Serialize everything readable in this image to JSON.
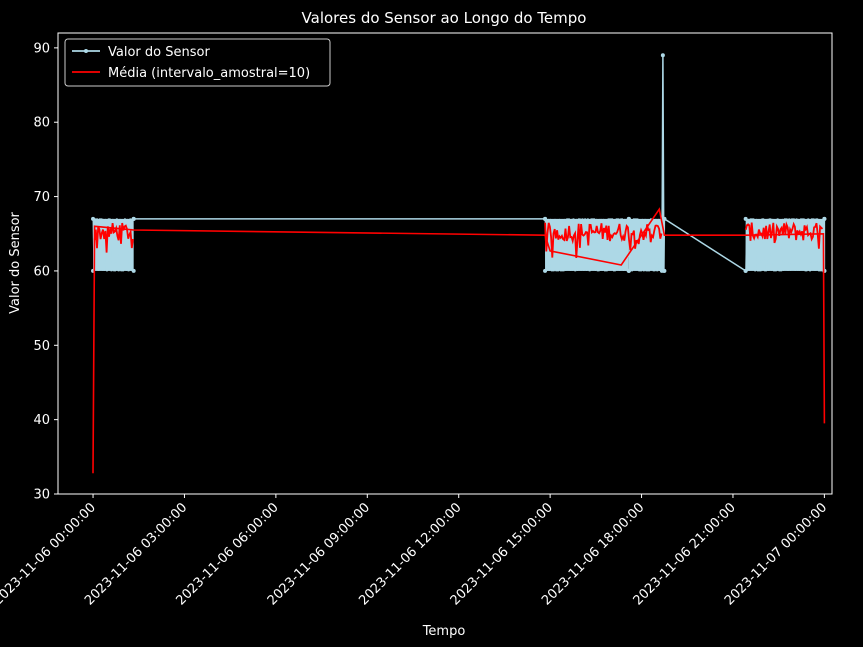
{
  "chart_data": {
    "type": "line",
    "title": "Valores do Sensor ao Longo do Tempo",
    "xlabel": "Tempo",
    "ylabel": "Valor do Sensor",
    "background": "#000000",
    "grid": false,
    "legend_position": "top-left",
    "x_ticks": [
      "2023-11-06 00:00:00",
      "2023-11-06 03:00:00",
      "2023-11-06 06:00:00",
      "2023-11-06 09:00:00",
      "2023-11-06 12:00:00",
      "2023-11-06 15:00:00",
      "2023-11-06 18:00:00",
      "2023-11-06 21:00:00",
      "2023-11-07 00:00:00"
    ],
    "y_ticks": [
      30,
      40,
      50,
      60,
      70,
      80,
      90
    ],
    "xlim": [
      "2023-11-05 22:51:00",
      "2023-11-07 00:15:00"
    ],
    "ylim": [
      30,
      92
    ],
    "series": [
      {
        "name": "Valor do Sensor",
        "color": "#add8e6",
        "marker": "circle",
        "band_low": 60,
        "band_high": 67,
        "segments": [
          [
            "2023-11-06 00:00:00",
            "2023-11-06 01:20:00"
          ],
          [
            "2023-11-06 14:50:00",
            "2023-11-06 17:35:00"
          ],
          [
            "2023-11-06 17:35:00",
            "2023-11-06 18:45:00"
          ],
          [
            "2023-11-06 21:25:00",
            "2023-11-07 00:00:00"
          ]
        ],
        "points": [
          [
            "2023-11-06 01:20:00",
            67
          ],
          [
            "2023-11-06 14:50:00",
            67
          ],
          [
            "2023-11-06 18:40:00",
            60
          ],
          [
            "2023-11-06 18:42:00",
            89
          ],
          [
            "2023-11-06 18:44:00",
            60
          ],
          [
            "2023-11-06 18:45:00",
            67
          ],
          [
            "2023-11-06 21:25:00",
            60
          ],
          [
            "2023-11-07 00:00:00",
            67
          ],
          [
            "2023-11-07 00:00:00",
            60
          ]
        ]
      },
      {
        "name": "Média (intervalo_amostral=10)",
        "color": "#ff0000",
        "band_low": 64,
        "band_high": 66.5,
        "segments": [
          [
            "2023-11-06 00:03:00",
            "2023-11-06 01:20:00"
          ],
          [
            "2023-11-06 14:50:00",
            "2023-11-06 18:40:00"
          ],
          [
            "2023-11-06 21:25:00",
            "2023-11-06 23:58:00"
          ]
        ],
        "points": [
          [
            "2023-11-06 00:00:00",
            32.8
          ],
          [
            "2023-11-06 00:03:00",
            66
          ],
          [
            "2023-11-06 01:20:00",
            65.5
          ],
          [
            "2023-11-06 14:50:00",
            64.8
          ],
          [
            "2023-11-06 15:00:00",
            62.7
          ],
          [
            "2023-11-06 17:20:00",
            60.8
          ],
          [
            "2023-11-06 18:35:00",
            68.3
          ],
          [
            "2023-11-06 18:45:00",
            64.8
          ],
          [
            "2023-11-06 21:25:00",
            64.8
          ],
          [
            "2023-11-06 23:58:00",
            65
          ],
          [
            "2023-11-07 00:00:00",
            39.5
          ]
        ]
      }
    ]
  }
}
